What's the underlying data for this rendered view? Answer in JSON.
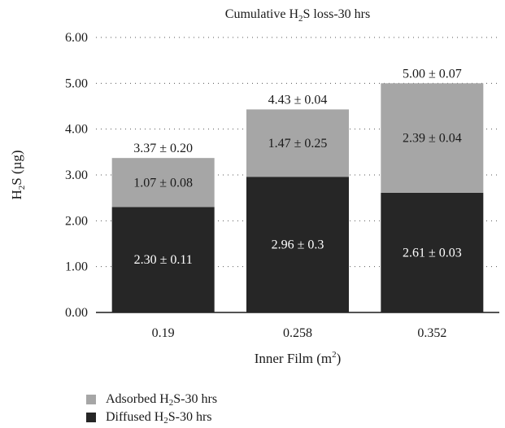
{
  "chart_data": {
    "type": "bar",
    "stacked": true,
    "title": "Cumulative H2S loss-30 hrs",
    "xlabel": "Inner Film (m2)",
    "ylabel": "H2S (µg)",
    "ylim": [
      0,
      6
    ],
    "yticks": [
      "0.00",
      "1.00",
      "2.00",
      "3.00",
      "4.00",
      "5.00",
      "6.00"
    ],
    "grid": "dotted horizontal",
    "legend_position": "bottom-left",
    "categories": [
      "0.19",
      "0.258",
      "0.352"
    ],
    "series": [
      {
        "name": "Diffused H2S-30 hrs",
        "color": "#262626",
        "values": [
          2.3,
          2.96,
          2.61
        ],
        "labels": [
          "2.30 ± 0.11",
          "2.96 ± 0.3",
          "2.61 ± 0.03"
        ]
      },
      {
        "name": "Adsorbed H2S-30 hrs",
        "color": "#a6a6a6",
        "values": [
          1.07,
          1.47,
          2.39
        ],
        "labels": [
          "1.07 ± 0.08",
          "1.47 ± 0.25",
          "2.39 ± 0.04"
        ]
      }
    ],
    "totals": {
      "values": [
        3.37,
        4.43,
        5.0
      ],
      "labels": [
        "3.37 ± 0.20",
        "4.43 ± 0.04",
        "5.00 ± 0.07"
      ]
    }
  }
}
